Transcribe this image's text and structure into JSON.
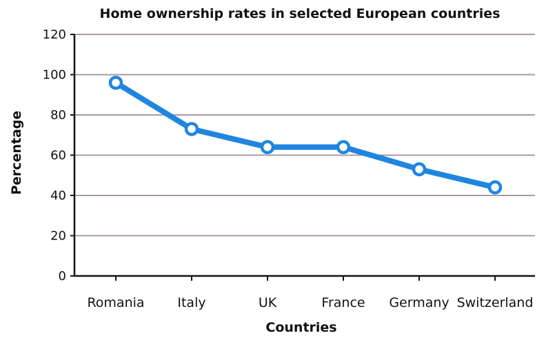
{
  "chart_data": {
    "type": "line",
    "title": "Home ownership rates in selected European countries",
    "xlabel": "Countries",
    "ylabel": "Percentage",
    "categories": [
      "Romania",
      "Italy",
      "UK",
      "France",
      "Germany",
      "Switzerland"
    ],
    "values": [
      96,
      73,
      64,
      64,
      53,
      44
    ],
    "ylim": [
      0,
      120
    ],
    "yticks": [
      0,
      20,
      40,
      60,
      80,
      100,
      120
    ],
    "grid": true,
    "line_color": "#1f86e0",
    "grid_color": "#a89aa4"
  }
}
